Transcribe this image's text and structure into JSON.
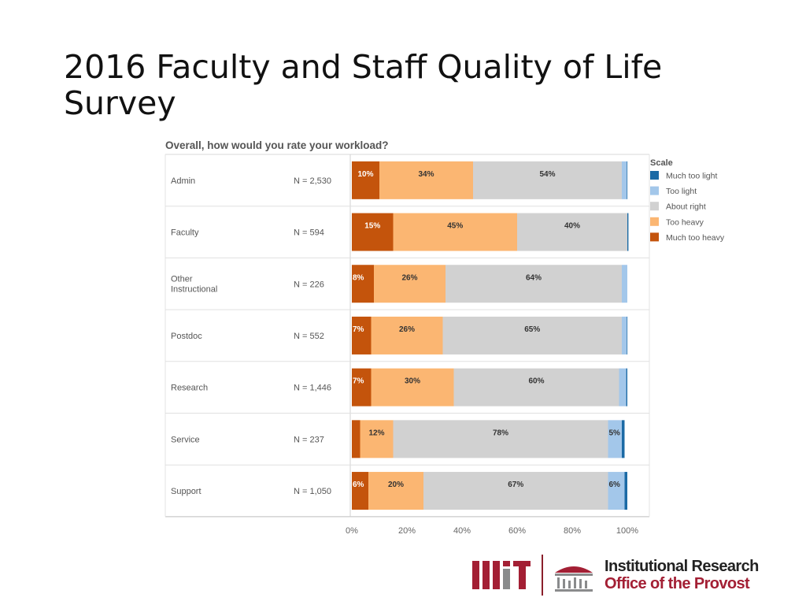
{
  "slide": {
    "title": "2016 Faculty and Staff Quality of Life Survey"
  },
  "chart_data": {
    "type": "bar",
    "orientation": "horizontal",
    "stacked": true,
    "normalized_percent": true,
    "title": "Overall, how would you rate your workload?",
    "categories": [
      "Admin",
      "Faculty",
      "Other Instructional",
      "Postdoc",
      "Research",
      "Service",
      "Support"
    ],
    "n_labels": [
      "N = 2,530",
      "N = 594",
      "N = 226",
      "N = 552",
      "N = 1,446",
      "N = 237",
      "N = 1,050"
    ],
    "series": [
      {
        "name": "Much too heavy",
        "color": "#c4540c",
        "values": [
          10,
          15,
          8,
          7,
          7,
          3,
          6
        ],
        "labels": [
          "10%",
          "15%",
          "8%",
          "7%",
          "7%",
          "",
          "6%"
        ]
      },
      {
        "name": "Too heavy",
        "color": "#fbb672",
        "values": [
          34,
          45,
          26,
          26,
          30,
          12,
          20
        ],
        "labels": [
          "34%",
          "45%",
          "26%",
          "26%",
          "30%",
          "12%",
          "20%"
        ]
      },
      {
        "name": "About right",
        "color": "#d1d1d1",
        "values": [
          54,
          40,
          64,
          65,
          60,
          78,
          67
        ],
        "labels": [
          "54%",
          "40%",
          "64%",
          "65%",
          "60%",
          "78%",
          "67%"
        ]
      },
      {
        "name": "Too light",
        "color": "#a3c7ea",
        "values": [
          1.8,
          0,
          2,
          1.8,
          2.6,
          5,
          6
        ],
        "labels": [
          "",
          "",
          "",
          "",
          "",
          "5%",
          "6%"
        ]
      },
      {
        "name": "Much too light",
        "color": "#1b6aa5",
        "values": [
          0.2,
          0.4,
          0,
          0.2,
          0.4,
          1,
          1
        ],
        "labels": [
          "",
          "",
          "",
          "",
          "",
          "",
          ""
        ]
      }
    ],
    "xlim": [
      0,
      100
    ],
    "xticks": [
      "0%",
      "20%",
      "40%",
      "60%",
      "80%",
      "100%"
    ],
    "legend": {
      "title": "Scale",
      "position": "right",
      "entries": [
        "Much too light",
        "Too light",
        "About right",
        "Too heavy",
        "Much too heavy"
      ]
    },
    "grid": false
  },
  "footer": {
    "logo_line1": "Institutional Research",
    "logo_line2": "Office of the Provost",
    "logo_text": "MIT",
    "colors": {
      "mit_red": "#a31f34",
      "mit_gray": "#8a8b8c"
    }
  }
}
